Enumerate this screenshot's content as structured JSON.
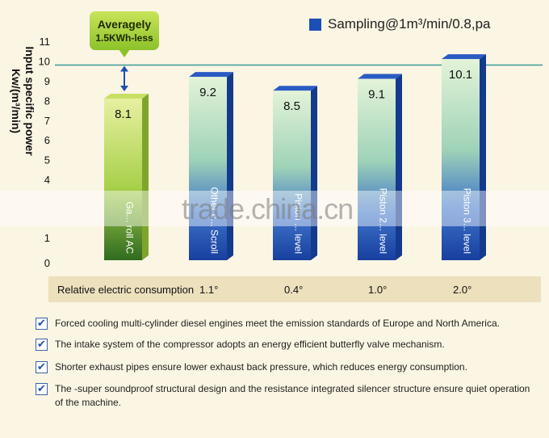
{
  "chart_data": {
    "type": "bar",
    "ylabel": "Input specific power Kw/(m³/min)",
    "ylim": [
      0,
      11
    ],
    "yticks": [
      0,
      1,
      4,
      5,
      6,
      7,
      8,
      9,
      10,
      11
    ],
    "reference_line": 9.8,
    "categories": [
      "Ga... roll AC",
      "Other c... Scroll",
      "Piston ... level",
      "Piston 2... level",
      "Piston 3... level"
    ],
    "values": [
      8.1,
      9.2,
      8.5,
      9.1,
      10.1
    ],
    "value_labels": [
      "8.1",
      "9.2",
      "8.5",
      "9.1",
      "10.1"
    ],
    "colors": [
      "#9ccc3a",
      "#1f55c4",
      "#1f55c4",
      "#1f55c4",
      "#1f55c4"
    ],
    "legend": "Sampling@1m³/min/0.8,pa"
  },
  "callout": {
    "line1": "Averagely",
    "line2": "1.5KWh-less"
  },
  "consumption": {
    "label": "Relative electric consumption",
    "values": [
      "1.1°",
      "0.4°",
      "1.0°",
      "2.0°"
    ]
  },
  "notes": [
    "Forced cooling multi-cylinder diesel engines meet the emission standards of Europe and North America.",
    "The intake system of the compressor adopts an energy efficient butterfly valve mechanism.",
    "Shorter exhaust pipes ensure lower exhaust back pressure, which reduces energy consumption.",
    "The -super soundproof structural design and the resistance integrated silencer structure ensure quiet operation of the machine."
  ],
  "watermark": "trade.china.cn"
}
